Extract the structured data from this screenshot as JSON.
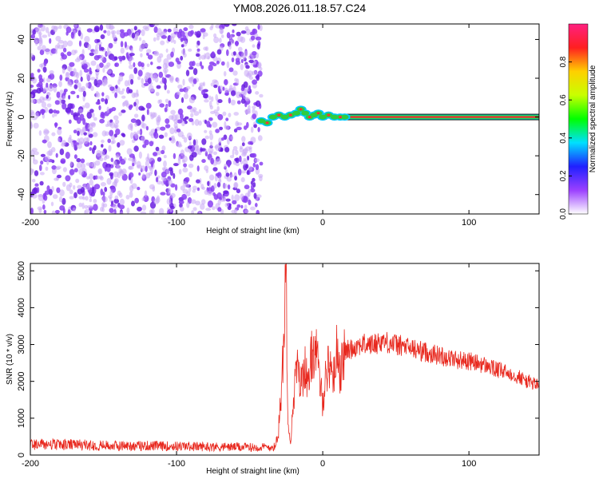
{
  "figure": {
    "title": "YM08.2026.011.18.57.C24"
  },
  "chart_data": [
    {
      "type": "heatmap",
      "xlabel": "Height of straight line (km)",
      "ylabel": "Frequency (Hz)",
      "xlim": [
        -200,
        148
      ],
      "ylim": [
        -50,
        48
      ],
      "x_ticks": [
        -200,
        -100,
        0,
        100
      ],
      "y_ticks": [
        -40,
        -20,
        0,
        20,
        40
      ],
      "grid": false,
      "regions": [
        {
          "kind": "noise",
          "x_range": [
            -200,
            -42
          ],
          "y_range": [
            -50,
            48
          ],
          "color": "#7b2cf0"
        },
        {
          "kind": "signal-wiggle",
          "x_range": [
            -42,
            15
          ],
          "center_freq": 0,
          "color": "#2ecc40"
        },
        {
          "kind": "steady-line",
          "x_range": [
            15,
            148
          ],
          "center_freq": 0,
          "color": "#ff1a3c"
        }
      ],
      "colorbar": {
        "label": "Normalized spectral amplitude",
        "range": [
          0,
          1
        ],
        "ticks": [
          "0.0",
          "0.2",
          "0.4",
          "0.6",
          "0.8"
        ],
        "tick_values": [
          0,
          0.2,
          0.4,
          0.6,
          0.8
        ],
        "colors": [
          "#ffffff",
          "#9b40ff",
          "#2020ff",
          "#00e0ff",
          "#00ff00",
          "#c8ff00",
          "#ffd000",
          "#ff2020",
          "#ff2080"
        ]
      }
    },
    {
      "type": "line",
      "xlabel": "Height of straight line (km)",
      "ylabel": "SNR (10 * v/v)",
      "xlim": [
        -200,
        148
      ],
      "ylim": [
        0,
        5200
      ],
      "x_ticks": [
        -200,
        -100,
        0,
        100
      ],
      "y_ticks": [
        0,
        1000,
        2000,
        3000,
        4000,
        5000
      ],
      "grid": false,
      "color": "#e8281e",
      "series": [
        {
          "x": [
            -200,
            -180,
            -160,
            -140,
            -120,
            -100,
            -80,
            -60,
            -45,
            -32,
            -28,
            -25,
            -24,
            -22,
            -20,
            -18,
            -15,
            -12,
            -10,
            -8,
            -5,
            -3,
            0,
            2,
            5,
            8,
            10,
            12,
            15,
            20,
            25,
            30,
            35,
            40,
            45,
            50,
            60,
            70,
            80,
            90,
            100,
            110,
            120,
            130,
            140,
            148
          ],
          "y": [
            300,
            280,
            270,
            250,
            250,
            240,
            230,
            220,
            210,
            220,
            1800,
            5100,
            1200,
            300,
            1500,
            2400,
            1900,
            2500,
            1700,
            2600,
            3000,
            2300,
            1400,
            2200,
            2500,
            2100,
            3100,
            2200,
            2800,
            2900,
            3000,
            3000,
            3000,
            3100,
            3050,
            3000,
            2900,
            2800,
            2700,
            2600,
            2550,
            2450,
            2300,
            2200,
            2000,
            1900
          ]
        }
      ]
    }
  ]
}
